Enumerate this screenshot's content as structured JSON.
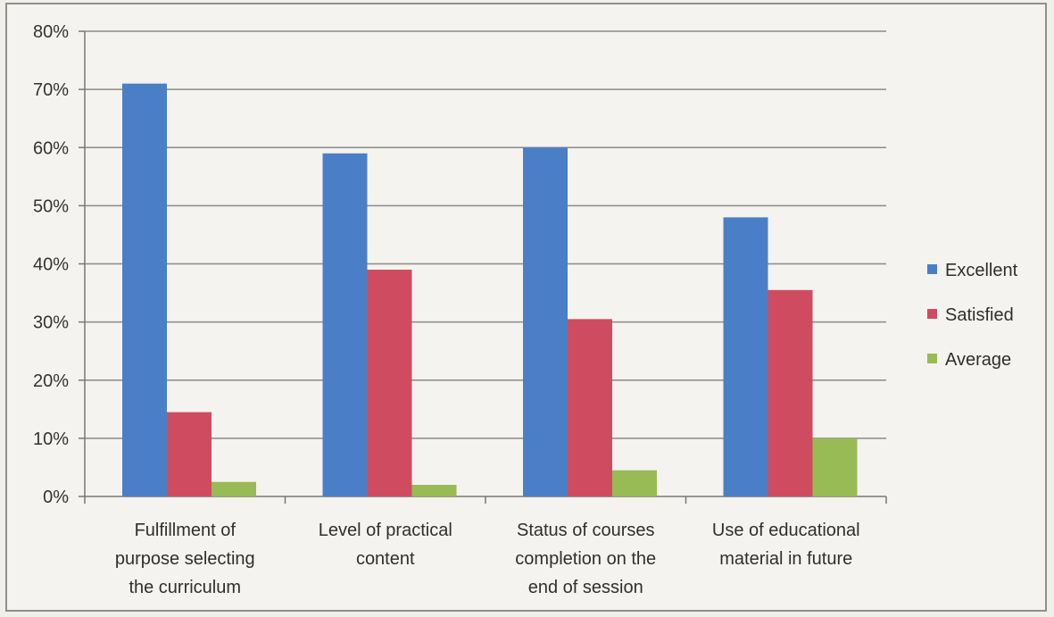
{
  "chart_data": {
    "type": "bar",
    "title": "",
    "xlabel": "",
    "ylabel": "",
    "ylim": [
      0,
      80
    ],
    "yticks": [
      0,
      10,
      20,
      30,
      40,
      50,
      60,
      70,
      80
    ],
    "ytick_labels": [
      "0%",
      "10%",
      "20%",
      "30%",
      "40%",
      "50%",
      "60%",
      "70%",
      "80%"
    ],
    "grid": true,
    "legend_position": "right",
    "categories": [
      [
        "Fulfillment of",
        "purpose selecting",
        "the curriculum"
      ],
      [
        "Level of practical",
        "content"
      ],
      [
        "Status of courses",
        "completion on the",
        "end of session"
      ],
      [
        "Use of educational",
        "material in future"
      ]
    ],
    "series": [
      {
        "name": "Excellent",
        "color": "#4a7fc7",
        "values": [
          71,
          59,
          60,
          48
        ]
      },
      {
        "name": "Satisfied",
        "color": "#cf4c60",
        "values": [
          14.5,
          39,
          30.5,
          35.5
        ]
      },
      {
        "name": "Average",
        "color": "#98bb55",
        "values": [
          2.5,
          2,
          4.5,
          10
        ]
      }
    ]
  }
}
